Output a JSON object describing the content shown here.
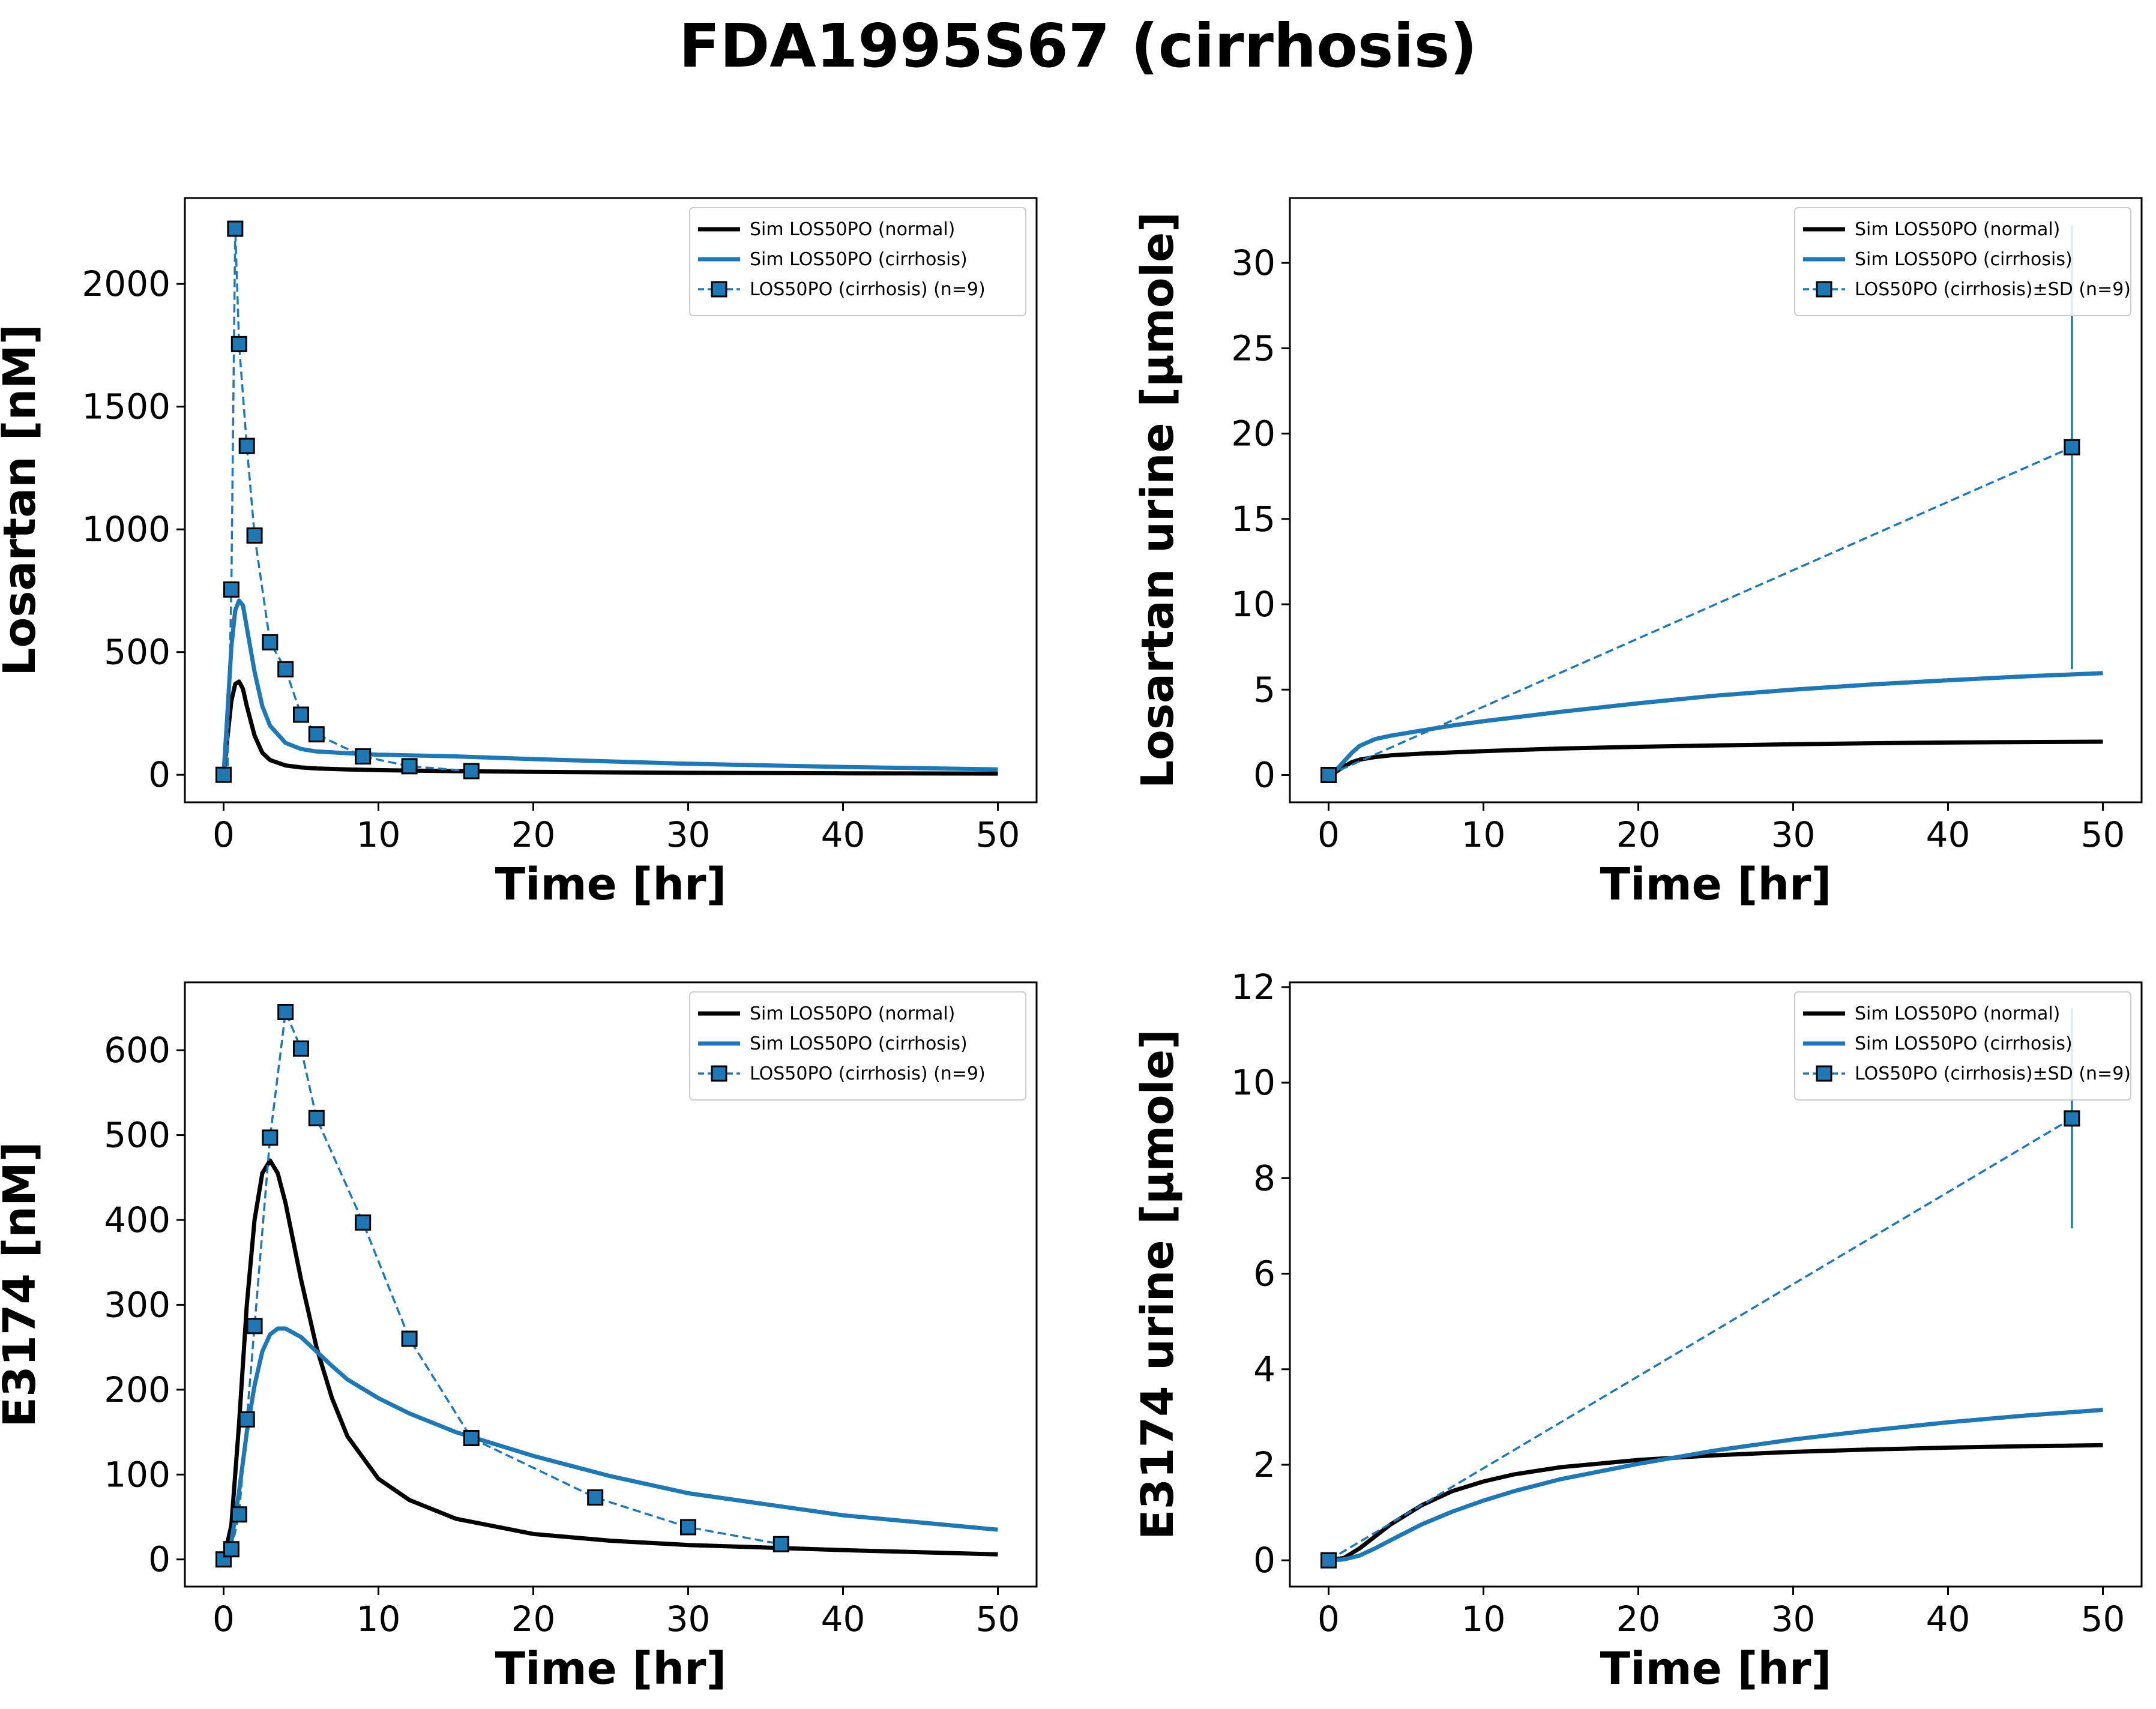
{
  "figure": {
    "title": "FDA1995S67 (cirrhosis)"
  },
  "colors": {
    "normal": "#000000",
    "cirrhosis": "#1f77b4",
    "marker_edge": "#000000"
  },
  "chart_data": [
    {
      "id": "losartan-plasma",
      "type": "line",
      "xlabel": "Time [hr]",
      "ylabel": "Losartan [nM]",
      "xlim": [
        -2.5,
        52.5
      ],
      "ylim": [
        -112,
        2350
      ],
      "xticks": [
        0,
        10,
        20,
        30,
        40,
        50
      ],
      "yticks": [
        0,
        500,
        1000,
        1500,
        2000
      ],
      "grid": false,
      "legend_position": "top-right",
      "series": [
        {
          "name": "Sim LOS50PO (normal)",
          "style": "solid",
          "color": "#000000",
          "x": [
            0,
            0.25,
            0.5,
            0.75,
            1.0,
            1.25,
            1.5,
            2.0,
            2.5,
            3,
            4,
            5,
            6,
            8,
            10,
            15,
            20,
            30,
            40,
            50
          ],
          "y": [
            0,
            150,
            300,
            370,
            380,
            350,
            280,
            160,
            90,
            60,
            38,
            30,
            26,
            22,
            19,
            15,
            12,
            8,
            6,
            5
          ]
        },
        {
          "name": "Sim LOS50PO (cirrhosis)",
          "style": "solid",
          "color": "#1f77b4",
          "x": [
            0,
            0.25,
            0.5,
            0.75,
            1.0,
            1.25,
            1.5,
            2.0,
            2.5,
            3,
            4,
            5,
            6,
            8,
            10,
            15,
            20,
            30,
            40,
            50
          ],
          "y": [
            0,
            250,
            520,
            670,
            710,
            690,
            600,
            420,
            280,
            200,
            130,
            105,
            95,
            88,
            82,
            75,
            64,
            45,
            32,
            22
          ]
        },
        {
          "name": "LOS50PO (cirrhosis) (n=9)",
          "style": "dashed",
          "color": "#1f77b4",
          "marker": "square",
          "x": [
            0,
            0.25,
            0.5,
            0.75,
            1.0,
            1.5,
            2,
            3,
            4,
            5,
            6,
            9,
            12,
            16
          ],
          "y": [
            0,
            0,
            755,
            2225,
            1755,
            1340,
            975,
            540,
            430,
            245,
            165,
            75,
            35,
            15
          ],
          "hidden_mask": [
            0,
            1,
            0,
            0,
            0,
            0,
            0,
            0,
            0,
            0,
            0,
            0,
            0,
            0
          ]
        }
      ]
    },
    {
      "id": "losartan-urine",
      "type": "line",
      "xlabel": "Time [hr]",
      "ylabel": "Losartan urine [µmole]",
      "xlim": [
        -2.5,
        52.5
      ],
      "ylim": [
        -1.6,
        33.8
      ],
      "xticks": [
        0,
        10,
        20,
        30,
        40,
        50
      ],
      "yticks": [
        0,
        5,
        10,
        15,
        20,
        25,
        30
      ],
      "grid": false,
      "legend_position": "top-right",
      "series": [
        {
          "name": "Sim LOS50PO (normal)",
          "style": "solid",
          "color": "#000000",
          "x": [
            0,
            0.5,
            1,
            1.5,
            2,
            3,
            4,
            6,
            8,
            10,
            15,
            20,
            25,
            30,
            35,
            40,
            45,
            50
          ],
          "y": [
            0,
            0.2,
            0.5,
            0.75,
            0.9,
            1.05,
            1.15,
            1.25,
            1.32,
            1.4,
            1.55,
            1.65,
            1.73,
            1.8,
            1.86,
            1.9,
            1.93,
            1.95
          ]
        },
        {
          "name": "Sim LOS50PO (cirrhosis)",
          "style": "solid",
          "color": "#1f77b4",
          "x": [
            0,
            0.5,
            1,
            1.5,
            2,
            3,
            4,
            6,
            8,
            10,
            15,
            20,
            25,
            30,
            35,
            40,
            45,
            50
          ],
          "y": [
            0,
            0.3,
            0.8,
            1.3,
            1.7,
            2.1,
            2.3,
            2.6,
            2.9,
            3.15,
            3.7,
            4.2,
            4.65,
            5.0,
            5.3,
            5.55,
            5.78,
            5.97
          ]
        },
        {
          "name": "LOS50PO (cirrhosis)±SD (n=9)",
          "style": "dashed",
          "color": "#1f77b4",
          "marker": "square",
          "x": [
            0,
            48
          ],
          "y": [
            0,
            19.2
          ],
          "err": [
            0,
            13.0
          ]
        }
      ]
    },
    {
      "id": "e3174-plasma",
      "type": "line",
      "xlabel": "Time [hr]",
      "ylabel": "E3174 [nM]",
      "xlim": [
        -2.5,
        52.5
      ],
      "ylim": [
        -32,
        680
      ],
      "xticks": [
        0,
        10,
        20,
        30,
        40,
        50
      ],
      "yticks": [
        0,
        100,
        200,
        300,
        400,
        500,
        600
      ],
      "grid": false,
      "legend_position": "top-right",
      "series": [
        {
          "name": "Sim LOS50PO (normal)",
          "style": "solid",
          "color": "#000000",
          "x": [
            0,
            0.5,
            1,
            1.5,
            2,
            2.5,
            3,
            3.5,
            4,
            5,
            6,
            7,
            8,
            10,
            12,
            15,
            20,
            25,
            30,
            40,
            50
          ],
          "y": [
            0,
            40,
            160,
            300,
            400,
            455,
            470,
            455,
            420,
            330,
            250,
            190,
            145,
            95,
            70,
            48,
            30,
            22,
            17,
            11,
            6
          ]
        },
        {
          "name": "Sim LOS50PO (cirrhosis)",
          "style": "solid",
          "color": "#1f77b4",
          "x": [
            0,
            0.5,
            1,
            1.5,
            2,
            2.5,
            3,
            3.5,
            4,
            5,
            6,
            7,
            8,
            10,
            12,
            15,
            20,
            25,
            30,
            40,
            50
          ],
          "y": [
            0,
            20,
            80,
            150,
            205,
            245,
            265,
            272,
            272,
            262,
            245,
            228,
            212,
            190,
            172,
            150,
            122,
            98,
            78,
            52,
            35
          ]
        },
        {
          "name": "LOS50PO (cirrhosis) (n=9)",
          "style": "dashed",
          "color": "#1f77b4",
          "marker": "square",
          "x": [
            0,
            0.5,
            1,
            1.5,
            2,
            3,
            4,
            5,
            6,
            9,
            12,
            16,
            24,
            30,
            36
          ],
          "y": [
            0,
            12,
            53,
            165,
            275,
            497,
            645,
            602,
            520,
            397,
            260,
            143,
            73,
            38,
            18
          ]
        }
      ]
    },
    {
      "id": "e3174-urine",
      "type": "line",
      "xlabel": "Time [hr]",
      "ylabel": "E3174 urine [µmole]",
      "xlim": [
        -2.5,
        52.5
      ],
      "ylim": [
        -0.55,
        12.1
      ],
      "xticks": [
        0,
        10,
        20,
        30,
        40,
        50
      ],
      "yticks": [
        0,
        2,
        4,
        6,
        8,
        10,
        12
      ],
      "grid": false,
      "legend_position": "top-right",
      "series": [
        {
          "name": "Sim LOS50PO (normal)",
          "style": "solid",
          "color": "#000000",
          "x": [
            0,
            1,
            2,
            3,
            4,
            6,
            8,
            10,
            12,
            15,
            20,
            25,
            30,
            35,
            40,
            45,
            50
          ],
          "y": [
            0,
            0.05,
            0.25,
            0.5,
            0.75,
            1.15,
            1.45,
            1.65,
            1.8,
            1.95,
            2.1,
            2.2,
            2.27,
            2.32,
            2.36,
            2.39,
            2.41
          ]
        },
        {
          "name": "Sim LOS50PO (cirrhosis)",
          "style": "solid",
          "color": "#1f77b4",
          "x": [
            0,
            1,
            2,
            3,
            4,
            6,
            8,
            10,
            12,
            15,
            20,
            25,
            30,
            35,
            40,
            45,
            50
          ],
          "y": [
            0,
            0.02,
            0.1,
            0.25,
            0.42,
            0.75,
            1.02,
            1.25,
            1.45,
            1.7,
            2.02,
            2.3,
            2.53,
            2.72,
            2.89,
            3.03,
            3.15
          ]
        },
        {
          "name": "LOS50PO (cirrhosis)±SD (n=9)",
          "style": "dashed",
          "color": "#1f77b4",
          "marker": "square",
          "x": [
            0,
            48
          ],
          "y": [
            0,
            9.25
          ],
          "err": [
            0,
            2.3
          ]
        }
      ]
    }
  ]
}
